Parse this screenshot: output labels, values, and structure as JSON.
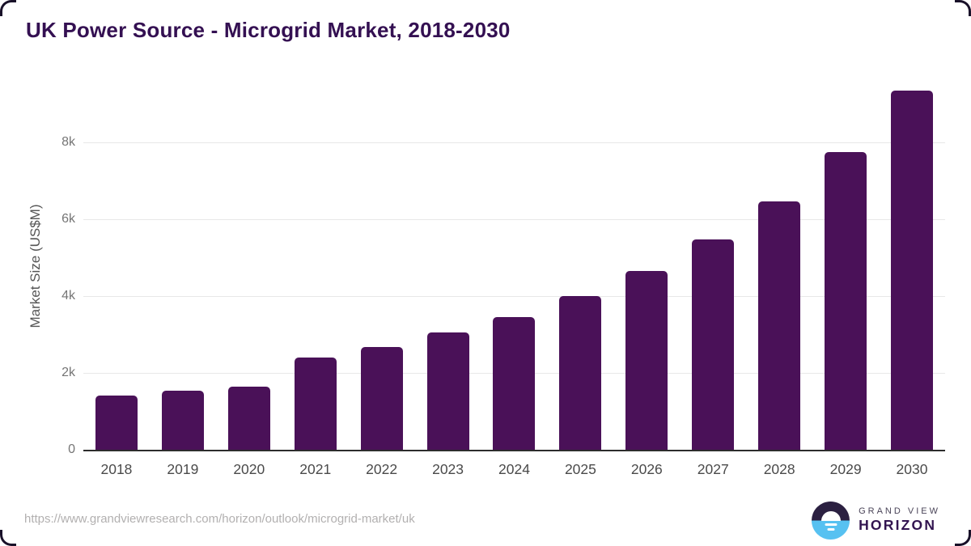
{
  "chart_data": {
    "type": "bar",
    "title": "UK Power Source - Microgrid Market, 2018-2030",
    "xlabel": "",
    "ylabel": "Market Size (US$M)",
    "categories": [
      "2018",
      "2019",
      "2020",
      "2021",
      "2022",
      "2023",
      "2024",
      "2025",
      "2026",
      "2027",
      "2028",
      "2029",
      "2030"
    ],
    "values": [
      1410,
      1540,
      1650,
      2400,
      2680,
      3050,
      3450,
      4010,
      4650,
      5470,
      6460,
      7740,
      9340
    ],
    "ylim": [
      0,
      9600
    ],
    "yticks": [
      {
        "label": "0",
        "value": 0
      },
      {
        "label": "2k",
        "value": 2000
      },
      {
        "label": "4k",
        "value": 4000
      },
      {
        "label": "6k",
        "value": 6000
      },
      {
        "label": "8k",
        "value": 8000
      }
    ],
    "grid": "horizontal",
    "legend": "none",
    "bar_color": "#4a1158"
  },
  "colors": {
    "title": "#341052",
    "bar": "#4a1158",
    "gridline": "#e8e8e8",
    "axis_line": "#2d2d2d",
    "tick_text": "#757575",
    "brand_blue": "#57c1f1",
    "brand_dark": "#2b2041"
  },
  "footer": {
    "source_url": "https://www.grandviewresearch.com/horizon/outlook/microgrid-market/uk",
    "brand_line1": "GRAND VIEW",
    "brand_line2": "HORIZON"
  }
}
